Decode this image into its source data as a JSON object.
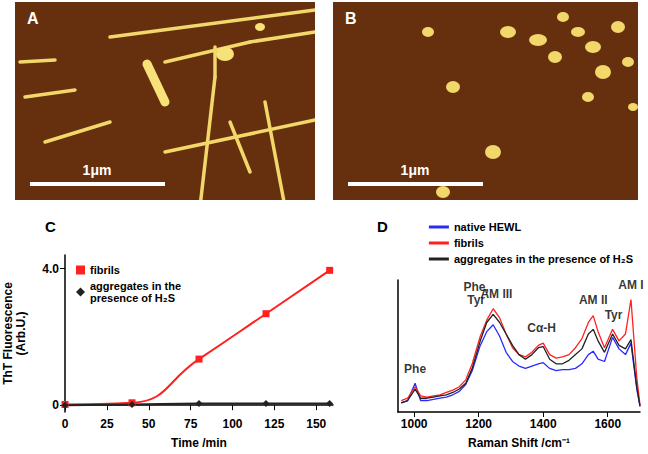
{
  "images": [
    {
      "label": "A",
      "scale_bar": "1μm"
    },
    {
      "label": "B",
      "scale_bar": "1μm"
    }
  ],
  "chart_data": [
    {
      "type": "line",
      "title": "C",
      "x_label": "Time /min",
      "y_label": "ThT Fluorescence\n(Arb.U.)",
      "x": [
        0,
        40,
        80,
        120,
        158
      ],
      "series": [
        {
          "name": "fibrils",
          "color": "#ff2020",
          "marker": "square",
          "line_style": "solid",
          "values": [
            0.02,
            0.07,
            1.35,
            2.68,
            3.95
          ]
        },
        {
          "name": "aggregates in the\npresence of H₂S",
          "color": "#222222",
          "marker": "diamond",
          "line_style": "solid",
          "values": [
            0.0,
            0.02,
            0.05,
            0.05,
            0.05
          ]
        }
      ],
      "xlim": [
        0,
        160
      ],
      "xticks": [
        0,
        25,
        50,
        75,
        100,
        125,
        150
      ],
      "ylim": [
        -0.2,
        4.4
      ],
      "yticks": [
        0,
        {
          "value": 4,
          "label": "4.0"
        }
      ],
      "grid": false,
      "legend": "upper left"
    },
    {
      "type": "line",
      "title": "D",
      "x_label": "Raman Shift /cm⁻¹",
      "x": [
        960,
        980,
        1003,
        1020,
        1040,
        1060,
        1080,
        1100,
        1120,
        1140,
        1160,
        1180,
        1205,
        1225,
        1245,
        1265,
        1285,
        1305,
        1325,
        1345,
        1365,
        1385,
        1400,
        1420,
        1440,
        1460,
        1480,
        1500,
        1520,
        1540,
        1555,
        1570,
        1590,
        1615,
        1635,
        1655,
        1672,
        1690,
        1700
      ],
      "series": [
        {
          "name": "native HEWL",
          "color": "#2a2aff",
          "marker": "none",
          "line_style": "solid",
          "values": [
            0.08,
            0.1,
            0.25,
            0.1,
            0.1,
            0.11,
            0.12,
            0.13,
            0.15,
            0.18,
            0.24,
            0.36,
            0.58,
            0.7,
            0.76,
            0.66,
            0.52,
            0.44,
            0.4,
            0.38,
            0.4,
            0.42,
            0.43,
            0.38,
            0.36,
            0.37,
            0.37,
            0.38,
            0.42,
            0.5,
            0.53,
            0.46,
            0.44,
            0.65,
            0.55,
            0.5,
            0.6,
            0.2,
            0.05
          ]
        },
        {
          "name": "fibrils",
          "color": "#ff2020",
          "marker": "none",
          "line_style": "solid",
          "values": [
            0.1,
            0.12,
            0.22,
            0.14,
            0.13,
            0.14,
            0.15,
            0.17,
            0.19,
            0.22,
            0.28,
            0.42,
            0.66,
            0.8,
            0.9,
            0.82,
            0.68,
            0.56,
            0.5,
            0.48,
            0.52,
            0.58,
            0.6,
            0.5,
            0.47,
            0.48,
            0.5,
            0.56,
            0.64,
            0.78,
            0.84,
            0.7,
            0.56,
            0.72,
            0.62,
            0.68,
            0.98,
            0.3,
            0.06
          ]
        },
        {
          "name": "aggregates in the presence of H₂S",
          "color": "#222222",
          "marker": "none",
          "line_style": "solid",
          "values": [
            0.08,
            0.1,
            0.2,
            0.12,
            0.12,
            0.13,
            0.14,
            0.15,
            0.17,
            0.2,
            0.25,
            0.38,
            0.62,
            0.78,
            0.85,
            0.78,
            0.68,
            0.58,
            0.5,
            0.46,
            0.5,
            0.56,
            0.57,
            0.46,
            0.42,
            0.42,
            0.45,
            0.5,
            0.55,
            0.68,
            0.72,
            0.62,
            0.52,
            0.68,
            0.58,
            0.55,
            0.63,
            0.22,
            0.05
          ]
        }
      ],
      "annotations": [
        {
          "text": "Phe",
          "x": 1003,
          "y": 0.3
        },
        {
          "text": "Phe,\nTyr",
          "x": 1192,
          "y": 0.9
        },
        {
          "text": "AM III",
          "x": 1255,
          "y": 0.95
        },
        {
          "text": "Cα-H",
          "x": 1395,
          "y": 0.66
        },
        {
          "text": "AM II",
          "x": 1555,
          "y": 0.9
        },
        {
          "text": "Tyr",
          "x": 1618,
          "y": 0.77
        },
        {
          "text": "AM I",
          "x": 1672,
          "y": 1.03
        }
      ],
      "xlim": [
        950,
        1700
      ],
      "xticks": [
        1000,
        1200,
        1400,
        1600
      ],
      "ylim": [
        0,
        1.15
      ],
      "grid": false,
      "legend": "upper right",
      "tick_labels": "x"
    }
  ]
}
